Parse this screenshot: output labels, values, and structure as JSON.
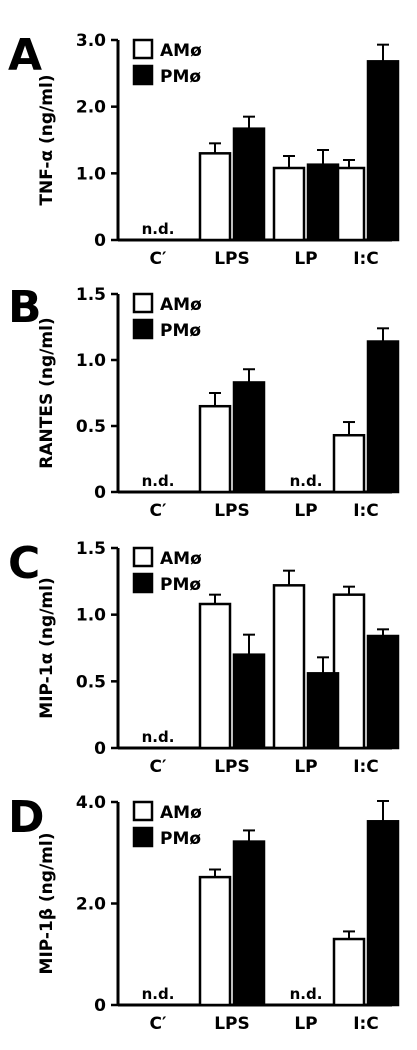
{
  "chart_data": [
    {
      "type": "bar",
      "panel": "A",
      "ylabel": "TNF-α (ng/ml)",
      "ylim": [
        0,
        3.0
      ],
      "yticks": [
        "0",
        "1.0",
        "2.0",
        "3.0"
      ],
      "ytick_values": [
        0,
        1.0,
        2.0,
        3.0
      ],
      "categories": [
        "C′",
        "LPS",
        "LP",
        "I:C"
      ],
      "legend": [
        "AMø",
        "PMø"
      ],
      "series": [
        {
          "name": "AMø",
          "values": [
            null,
            1.3,
            1.08,
            1.08
          ],
          "errors": [
            null,
            0.15,
            0.18,
            0.12
          ]
        },
        {
          "name": "PMø",
          "values": [
            null,
            1.67,
            1.13,
            2.68
          ],
          "errors": [
            null,
            0.18,
            0.22,
            0.25
          ]
        }
      ],
      "nd": [
        {
          "category": "C′",
          "text": "n.d."
        }
      ]
    },
    {
      "type": "bar",
      "panel": "B",
      "ylabel": "RANTES (ng/ml)",
      "ylim": [
        0,
        1.5
      ],
      "yticks": [
        "0",
        "0.5",
        "1.0",
        "1.5"
      ],
      "ytick_values": [
        0,
        0.5,
        1.0,
        1.5
      ],
      "categories": [
        "C′",
        "LPS",
        "LP",
        "I:C"
      ],
      "legend": [
        "AMø",
        "PMø"
      ],
      "series": [
        {
          "name": "AMø",
          "values": [
            null,
            0.65,
            null,
            0.43
          ],
          "errors": [
            null,
            0.1,
            null,
            0.1
          ]
        },
        {
          "name": "PMø",
          "values": [
            null,
            0.83,
            null,
            1.14
          ],
          "errors": [
            null,
            0.1,
            null,
            0.1
          ]
        }
      ],
      "nd": [
        {
          "category": "C′",
          "text": "n.d."
        },
        {
          "category": "LP",
          "text": "n.d."
        }
      ]
    },
    {
      "type": "bar",
      "panel": "C",
      "ylabel": "MIP-1α (ng/ml)",
      "ylim": [
        0,
        1.5
      ],
      "yticks": [
        "0",
        "0.5",
        "1.0",
        "1.5"
      ],
      "ytick_values": [
        0,
        0.5,
        1.0,
        1.5
      ],
      "categories": [
        "C′",
        "LPS",
        "LP",
        "I:C"
      ],
      "legend": [
        "AMø",
        "PMø"
      ],
      "series": [
        {
          "name": "AMø",
          "values": [
            null,
            1.08,
            1.22,
            1.15
          ],
          "errors": [
            null,
            0.07,
            0.11,
            0.06
          ]
        },
        {
          "name": "PMø",
          "values": [
            null,
            0.7,
            0.56,
            0.84
          ],
          "errors": [
            null,
            0.15,
            0.12,
            0.05
          ]
        }
      ],
      "nd": [
        {
          "category": "C′",
          "text": "n.d."
        }
      ]
    },
    {
      "type": "bar",
      "panel": "D",
      "ylabel": "MIP-1β (ng/ml)",
      "ylim": [
        0,
        4.0
      ],
      "yticks": [
        "0",
        "2.0",
        "4.0"
      ],
      "ytick_values": [
        0,
        2.0,
        4.0
      ],
      "categories": [
        "C′",
        "LPS",
        "LP",
        "I:C"
      ],
      "legend": [
        "AMø",
        "PMø"
      ],
      "series": [
        {
          "name": "AMø",
          "values": [
            null,
            2.52,
            null,
            1.3
          ],
          "errors": [
            null,
            0.15,
            null,
            0.15
          ]
        },
        {
          "name": "PMø",
          "values": [
            null,
            3.22,
            null,
            3.62
          ],
          "errors": [
            null,
            0.22,
            null,
            0.4
          ]
        }
      ],
      "nd": [
        {
          "category": "C′",
          "text": "n.d."
        },
        {
          "category": "LP",
          "text": "n.d."
        }
      ]
    }
  ]
}
